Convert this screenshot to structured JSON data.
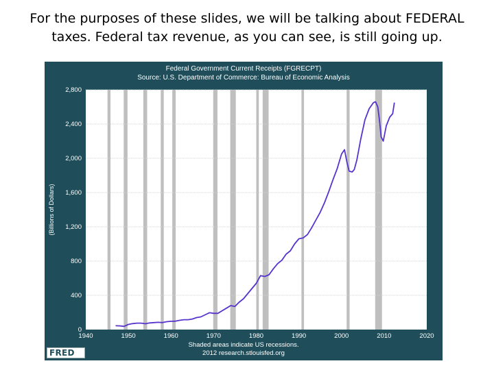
{
  "caption": {
    "line1": "For the purposes of these slides, we will be talking about FEDERAL",
    "line2": "taxes. Federal tax revenue, as you can see, is still going up."
  },
  "colors": {
    "panel": "#1f4e5a",
    "plot_bg": "#ffffff",
    "line": "#5533cc",
    "recession": "#bfbfbf",
    "grid": "#d0d0d0",
    "text_light": "#ffffff"
  },
  "chart_data": {
    "type": "line",
    "title": "Federal Government Current Receipts (FGRECPT)",
    "subtitle": "Source: U.S. Department of Commerce: Bureau of Economic Analysis",
    "xlabel": "",
    "ylabel": "(Billions of Dollars)",
    "xlim": [
      1940,
      2020
    ],
    "ylim": [
      0,
      2800
    ],
    "x_ticks": [
      1940,
      1950,
      1960,
      1970,
      1980,
      1990,
      2000,
      2010,
      2020
    ],
    "y_ticks": [
      0,
      400,
      800,
      1200,
      1600,
      2000,
      2400,
      2800
    ],
    "y_tick_labels": [
      "0",
      "400",
      "800",
      "1,200",
      "1,600",
      "2,000",
      "2,400",
      "2,800"
    ],
    "grid": true,
    "footer_line1": "Shaded areas indicate US recessions.",
    "footer_line2": "2012 research.stlouisfed.org",
    "brand": "FRED",
    "recessions": [
      [
        1945.1,
        1945.8
      ],
      [
        1948.9,
        1949.8
      ],
      [
        1953.5,
        1954.4
      ],
      [
        1957.6,
        1958.3
      ],
      [
        1960.3,
        1961.1
      ],
      [
        1969.9,
        1970.9
      ],
      [
        1973.9,
        1975.2
      ],
      [
        1980.0,
        1980.6
      ],
      [
        1981.5,
        1982.9
      ],
      [
        1990.6,
        1991.2
      ],
      [
        2001.2,
        2001.9
      ],
      [
        2007.9,
        2009.5
      ]
    ],
    "series": [
      {
        "name": "Federal Government Current Receipts",
        "x": [
          1947,
          1948,
          1949,
          1950,
          1951,
          1952,
          1953,
          1954,
          1955,
          1956,
          1957,
          1958,
          1959,
          1960,
          1961,
          1962,
          1963,
          1964,
          1965,
          1966,
          1967,
          1968,
          1969,
          1970,
          1971,
          1972,
          1973,
          1974,
          1975,
          1976,
          1977,
          1978,
          1979,
          1980,
          1981,
          1982,
          1983,
          1984,
          1985,
          1986,
          1987,
          1988,
          1989,
          1990,
          1991,
          1992,
          1993,
          1994,
          1995,
          1996,
          1997,
          1998,
          1999,
          2000,
          2000.7,
          2001.3,
          2001.8,
          2002.5,
          2003,
          2003.6,
          2004.5,
          2005.5,
          2006.5,
          2007.5,
          2008.0,
          2008.5,
          2008.9,
          2009.3,
          2009.8,
          2010.5,
          2011.3,
          2012.0,
          2012.4
        ],
        "values": [
          45,
          43,
          38,
          60,
          70,
          75,
          75,
          68,
          78,
          82,
          85,
          82,
          92,
          97,
          98,
          108,
          115,
          115,
          123,
          140,
          148,
          172,
          197,
          190,
          190,
          220,
          250,
          280,
          270,
          320,
          360,
          420,
          480,
          540,
          630,
          620,
          640,
          710,
          770,
          810,
          880,
          920,
          1000,
          1060,
          1070,
          1110,
          1190,
          1280,
          1370,
          1480,
          1610,
          1750,
          1880,
          2050,
          2100,
          1950,
          1850,
          1840,
          1870,
          1980,
          2220,
          2450,
          2580,
          2650,
          2660,
          2600,
          2450,
          2250,
          2200,
          2380,
          2480,
          2520,
          2650
        ]
      }
    ]
  }
}
